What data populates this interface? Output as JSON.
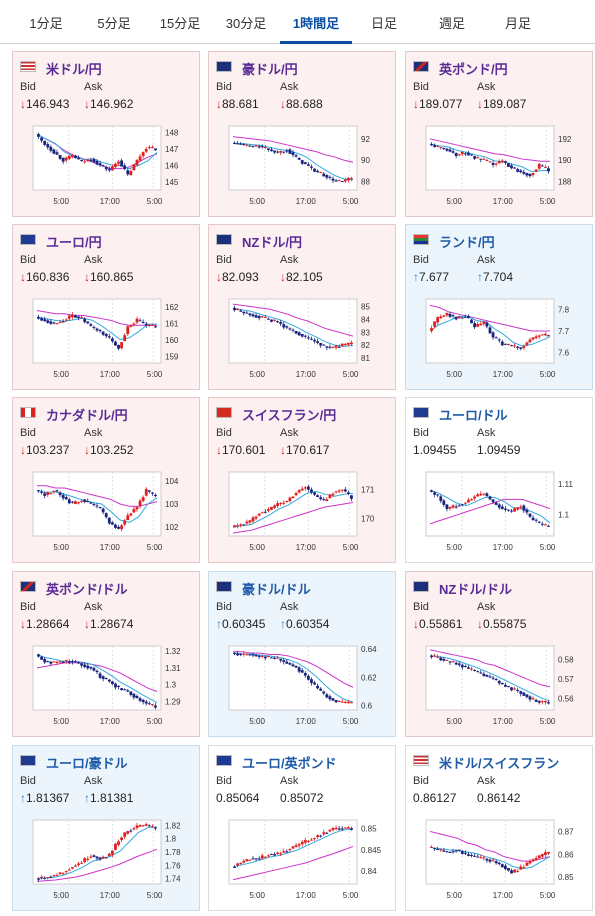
{
  "tabs": [
    {
      "label": "1分足"
    },
    {
      "label": "5分足"
    },
    {
      "label": "15分足"
    },
    {
      "label": "30分足"
    },
    {
      "label": "1時間足"
    },
    {
      "label": "日足"
    },
    {
      "label": "週足"
    },
    {
      "label": "月足"
    }
  ],
  "active_tab": "1時間足",
  "labels": {
    "bid": "Bid",
    "ask": "Ask"
  },
  "colors": {
    "down_card": "#fdf0f0",
    "up_card": "#edf5fc",
    "down_arrow": "#cc2222",
    "up_arrow": "#2a7fcf",
    "bull_candle": "#e02020",
    "bear_candle": "#1a237e",
    "ma_short": "#33aadd",
    "ma_long": "#cc33cc"
  },
  "cards": [
    {
      "pair": "米ドル/円",
      "flag": "us-jp",
      "dir": "down",
      "arrow": "↓",
      "bid": "146.943",
      "ask": "146.962"
    },
    {
      "pair": "豪ドル/円",
      "flag": "au-jp",
      "dir": "down",
      "arrow": "↓",
      "bid": "88.681",
      "ask": "88.688"
    },
    {
      "pair": "英ポンド/円",
      "flag": "uk-jp",
      "dir": "down",
      "arrow": "↓",
      "bid": "189.077",
      "ask": "189.087"
    },
    {
      "pair": "ユーロ/円",
      "flag": "eu-jp",
      "dir": "down",
      "arrow": "↓",
      "bid": "160.836",
      "ask": "160.865"
    },
    {
      "pair": "NZドル/円",
      "flag": "nz-jp",
      "dir": "down",
      "arrow": "↓",
      "bid": "82.093",
      "ask": "82.105"
    },
    {
      "pair": "ランド/円",
      "flag": "za-jp",
      "dir": "up",
      "arrow": "↑",
      "bid": "7.677",
      "ask": "7.704"
    },
    {
      "pair": "カナダドル/円",
      "flag": "ca-jp",
      "dir": "down",
      "arrow": "↓",
      "bid": "103.237",
      "ask": "103.252"
    },
    {
      "pair": "スイスフラン/円",
      "flag": "ch-jp",
      "dir": "down",
      "arrow": "↓",
      "bid": "170.601",
      "ask": "170.617"
    },
    {
      "pair": "ユーロ/ドル",
      "flag": "eu-us",
      "dir": "flat",
      "arrow": "",
      "bid": "1.09455",
      "ask": "1.09459"
    },
    {
      "pair": "英ポンド/ドル",
      "flag": "uk-us",
      "dir": "down",
      "arrow": "↓",
      "bid": "1.28664",
      "ask": "1.28674"
    },
    {
      "pair": "豪ドル/ドル",
      "flag": "au-us",
      "dir": "up",
      "arrow": "↑",
      "bid": "0.60345",
      "ask": "0.60354"
    },
    {
      "pair": "NZドル/ドル",
      "flag": "nz-us",
      "dir": "down",
      "arrow": "↓",
      "bid": "0.55861",
      "ask": "0.55875"
    },
    {
      "pair": "ユーロ/豪ドル",
      "flag": "eu-au",
      "dir": "up",
      "arrow": "↑",
      "bid": "1.81367",
      "ask": "1.81381"
    },
    {
      "pair": "ユーロ/英ポンド",
      "flag": "eu-uk",
      "dir": "flat",
      "arrow": "",
      "bid": "0.85064",
      "ask": "0.85072"
    },
    {
      "pair": "米ドル/スイスフラン",
      "flag": "us-ch",
      "dir": "flat",
      "arrow": "",
      "bid": "0.86127",
      "ask": "0.86142"
    }
  ],
  "chart_data": [
    {
      "type": "candlestick",
      "x_ticks": [
        "5:00",
        "17:00",
        "5:00"
      ],
      "y_ticks": [
        148,
        147,
        146,
        145
      ],
      "ylim": [
        144.5,
        148.4
      ],
      "path": [
        147.9,
        147.3,
        146.8,
        146.3,
        146.6,
        146.2,
        146.4,
        146.0,
        145.7,
        146.3,
        145.4,
        146.3,
        147.1,
        147.0
      ],
      "ma_long": [
        147.9,
        147.6,
        147.3,
        146.9,
        146.6,
        146.4,
        146.2,
        146.0,
        145.8,
        145.8,
        145.9,
        146.2,
        146.5,
        146.7
      ]
    },
    {
      "type": "candlestick",
      "x_ticks": [
        "5:00",
        "17:00",
        "5:00"
      ],
      "y_ticks": [
        92,
        90,
        88
      ],
      "ylim": [
        87.2,
        93.2
      ],
      "path": [
        91.6,
        91.5,
        91.3,
        91.3,
        91.0,
        90.7,
        91.0,
        90.2,
        89.6,
        89.0,
        88.6,
        88.1,
        88.0,
        88.3
      ],
      "ma_long": [
        92.2,
        92.1,
        92.0,
        91.9,
        91.8,
        91.6,
        91.4,
        91.2,
        91.0,
        90.8,
        90.5,
        90.3,
        90.0,
        89.8
      ]
    },
    {
      "type": "candlestick",
      "x_ticks": [
        "5:00",
        "17:00",
        "5:00"
      ],
      "y_ticks": [
        192,
        190,
        188
      ],
      "ylim": [
        187.2,
        193.2
      ],
      "path": [
        191.5,
        191.2,
        191.0,
        190.5,
        190.7,
        190.2,
        190.0,
        189.6,
        189.9,
        189.3,
        188.9,
        188.6,
        189.5,
        189.1
      ],
      "ma_long": [
        192.0,
        191.8,
        191.6,
        191.4,
        191.2,
        191.0,
        190.8,
        190.6,
        190.5,
        190.3,
        190.1,
        190.0,
        189.9,
        189.9
      ]
    },
    {
      "type": "candlestick",
      "x_ticks": [
        "5:00",
        "17:00",
        "5:00"
      ],
      "y_ticks": [
        162,
        161,
        160,
        159
      ],
      "ylim": [
        158.6,
        162.5
      ],
      "path": [
        161.4,
        161.2,
        161.0,
        161.2,
        161.5,
        161.3,
        160.8,
        160.5,
        160.1,
        159.5,
        160.8,
        161.2,
        160.9,
        160.8
      ],
      "ma_long": [
        161.8,
        161.7,
        161.6,
        161.6,
        161.5,
        161.5,
        161.4,
        161.3,
        161.2,
        161.0,
        160.9,
        160.9,
        160.9,
        160.9
      ]
    },
    {
      "type": "candlestick",
      "x_ticks": [
        "5:00",
        "17:00",
        "5:00"
      ],
      "y_ticks": [
        85,
        84,
        83,
        82,
        81
      ],
      "ylim": [
        80.6,
        85.6
      ],
      "path": [
        84.9,
        84.6,
        84.4,
        84.2,
        84.0,
        83.8,
        83.3,
        83.0,
        82.6,
        82.3,
        81.9,
        81.8,
        82.0,
        82.1
      ],
      "ma_long": [
        85.2,
        85.1,
        85.0,
        84.9,
        84.8,
        84.6,
        84.4,
        84.1,
        83.9,
        83.6,
        83.3,
        83.1,
        82.9,
        82.7
      ]
    },
    {
      "type": "candlestick",
      "x_ticks": [
        "5:00",
        "17:00",
        "5:00"
      ],
      "y_ticks": [
        7.8,
        7.7,
        7.6
      ],
      "ylim": [
        7.55,
        7.85
      ],
      "path": [
        7.7,
        7.76,
        7.78,
        7.76,
        7.77,
        7.72,
        7.74,
        7.67,
        7.64,
        7.63,
        7.62,
        7.66,
        7.68,
        7.68
      ],
      "ma_long": [
        7.82,
        7.81,
        7.79,
        7.78,
        7.77,
        7.76,
        7.75,
        7.74,
        7.73,
        7.72,
        7.71,
        7.7,
        7.7,
        7.7
      ]
    },
    {
      "type": "candlestick",
      "x_ticks": [
        "5:00",
        "17:00",
        "5:00"
      ],
      "y_ticks": [
        104,
        103,
        102
      ],
      "ylim": [
        101.6,
        104.4
      ],
      "path": [
        103.6,
        103.4,
        103.6,
        103.3,
        103.0,
        103.2,
        103.0,
        102.8,
        102.2,
        101.9,
        102.5,
        102.9,
        103.6,
        103.3
      ],
      "ma_long": [
        103.8,
        103.8,
        103.7,
        103.7,
        103.6,
        103.5,
        103.4,
        103.3,
        103.2,
        103.0,
        102.9,
        102.9,
        103.0,
        103.1
      ]
    },
    {
      "type": "candlestick",
      "x_ticks": [
        "5:00",
        "17:00",
        "5:00"
      ],
      "y_ticks": [
        171,
        170
      ],
      "ylim": [
        169.4,
        171.6
      ],
      "path": [
        169.7,
        169.8,
        169.9,
        170.2,
        170.3,
        170.5,
        170.6,
        170.9,
        171.1,
        170.8,
        170.6,
        170.9,
        171.0,
        170.7
      ],
      "ma_long": [
        169.5,
        169.55,
        169.6,
        169.7,
        169.8,
        169.9,
        170.0,
        170.1,
        170.2,
        170.3,
        170.4,
        170.45,
        170.5,
        170.55
      ]
    },
    {
      "type": "candlestick",
      "x_ticks": [
        "5:00",
        "17:00",
        "5:00"
      ],
      "y_ticks": [
        1.11,
        1.1
      ],
      "ylim": [
        1.093,
        1.114
      ],
      "path": [
        1.108,
        1.106,
        1.102,
        1.103,
        1.104,
        1.106,
        1.107,
        1.104,
        1.102,
        1.101,
        1.103,
        1.099,
        1.097,
        1.096
      ],
      "ma_long": [
        1.097,
        1.098,
        1.099,
        1.1,
        1.101,
        1.102,
        1.103,
        1.104,
        1.105,
        1.105,
        1.105,
        1.104,
        1.103,
        1.102
      ]
    },
    {
      "type": "candlestick",
      "x_ticks": [
        "5:00",
        "17:00",
        "5:00"
      ],
      "y_ticks": [
        1.32,
        1.31,
        1.3,
        1.29
      ],
      "ylim": [
        1.285,
        1.323
      ],
      "path": [
        1.318,
        1.314,
        1.313,
        1.314,
        1.314,
        1.312,
        1.31,
        1.305,
        1.302,
        1.298,
        1.296,
        1.292,
        1.289,
        1.287
      ],
      "ma_long": [
        1.31,
        1.311,
        1.312,
        1.313,
        1.313,
        1.313,
        1.312,
        1.311,
        1.309,
        1.307,
        1.304,
        1.301,
        1.298,
        1.296
      ]
    },
    {
      "type": "candlestick",
      "x_ticks": [
        "5:00",
        "17:00",
        "5:00"
      ],
      "y_ticks": [
        0.64,
        0.62,
        0.6
      ],
      "ylim": [
        0.597,
        0.642
      ],
      "path": [
        0.637,
        0.636,
        0.636,
        0.635,
        0.634,
        0.633,
        0.63,
        0.627,
        0.621,
        0.614,
        0.608,
        0.604,
        0.602,
        0.602
      ],
      "ma_long": [
        0.638,
        0.638,
        0.637,
        0.637,
        0.636,
        0.636,
        0.635,
        0.633,
        0.631,
        0.628,
        0.624,
        0.62,
        0.616,
        0.613
      ]
    },
    {
      "type": "candlestick",
      "x_ticks": [
        "5:00",
        "17:00",
        "5:00"
      ],
      "y_ticks": [
        0.58,
        0.57,
        0.56
      ],
      "ylim": [
        0.554,
        0.587
      ],
      "path": [
        0.582,
        0.581,
        0.579,
        0.578,
        0.576,
        0.574,
        0.572,
        0.57,
        0.567,
        0.565,
        0.563,
        0.56,
        0.558,
        0.558
      ],
      "ma_long": [
        0.585,
        0.584,
        0.583,
        0.582,
        0.581,
        0.58,
        0.578,
        0.577,
        0.575,
        0.573,
        0.571,
        0.569,
        0.567,
        0.566
      ]
    },
    {
      "type": "candlestick",
      "x_ticks": [
        "5:00",
        "17:00",
        "5:00"
      ],
      "y_ticks": [
        1.82,
        1.8,
        1.78,
        1.76,
        1.74
      ],
      "ylim": [
        1.732,
        1.828
      ],
      "path": [
        1.74,
        1.742,
        1.745,
        1.75,
        1.758,
        1.765,
        1.775,
        1.77,
        1.776,
        1.798,
        1.812,
        1.818,
        1.82,
        1.815
      ],
      "ma_long": [
        1.736,
        1.737,
        1.738,
        1.74,
        1.742,
        1.745,
        1.749,
        1.753,
        1.757,
        1.762,
        1.768,
        1.774,
        1.779,
        1.784
      ]
    },
    {
      "type": "candlestick",
      "x_ticks": [
        "5:00",
        "17:00",
        "5:00"
      ],
      "y_ticks": [
        0.85,
        0.845,
        0.84
      ],
      "ylim": [
        0.837,
        0.852
      ],
      "path": [
        0.841,
        0.842,
        0.843,
        0.843,
        0.844,
        0.844,
        0.845,
        0.846,
        0.847,
        0.848,
        0.849,
        0.85,
        0.85,
        0.85
      ],
      "ma_long": [
        0.838,
        0.8385,
        0.839,
        0.8395,
        0.84,
        0.8405,
        0.841,
        0.8415,
        0.842,
        0.8428,
        0.8435,
        0.8442,
        0.845,
        0.8458
      ]
    },
    {
      "type": "candlestick",
      "x_ticks": [
        "5:00",
        "17:00",
        "5:00"
      ],
      "y_ticks": [
        0.87,
        0.86,
        0.85
      ],
      "ylim": [
        0.847,
        0.875
      ],
      "path": [
        0.863,
        0.862,
        0.861,
        0.862,
        0.86,
        0.859,
        0.858,
        0.857,
        0.855,
        0.852,
        0.854,
        0.857,
        0.859,
        0.861
      ],
      "ma_long": [
        0.87,
        0.869,
        0.868,
        0.867,
        0.865,
        0.864,
        0.862,
        0.861,
        0.859,
        0.858,
        0.857,
        0.857,
        0.858,
        0.859
      ]
    }
  ]
}
